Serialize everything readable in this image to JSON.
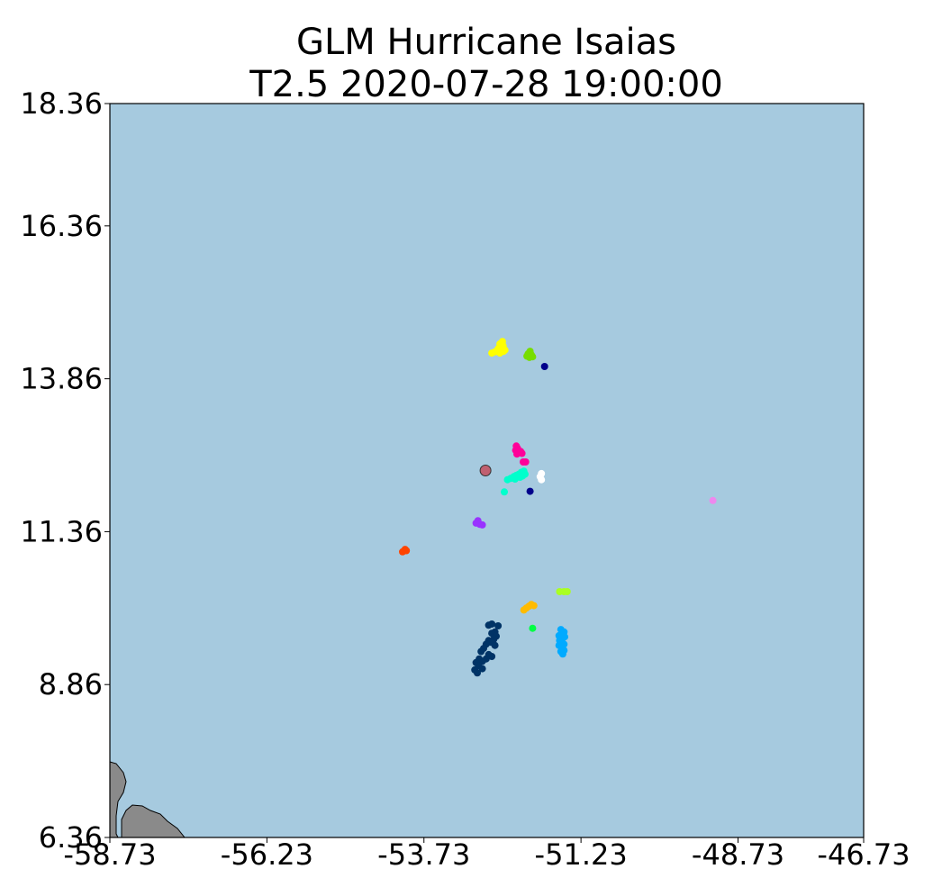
{
  "chart_data": {
    "type": "scatter",
    "title_lines": [
      "GLM Hurricane Isaias",
      "T2.5 2020-07-28 19:00:00"
    ],
    "xlim": [
      -58.73,
      -46.73
    ],
    "ylim": [
      6.36,
      18.36
    ],
    "xticks": [
      -58.73,
      -56.23,
      -53.73,
      -51.23,
      -48.73,
      -46.73
    ],
    "xtick_labels": [
      "-58.73",
      "-56.23",
      "-53.73",
      "-51.23",
      "-48.73",
      "-46.73"
    ],
    "yticks": [
      18.36,
      16.36,
      13.86,
      11.36,
      8.86,
      6.36
    ],
    "ytick_labels": [
      "18.36",
      "16.36",
      "13.86",
      "11.36",
      "8.86",
      "6.36"
    ],
    "grid": false,
    "background": "ocean",
    "colors": {
      "ocean": "#a6cadf",
      "land": "#8a8a8a",
      "storm_center": "#c06070"
    },
    "storm_center": {
      "lon": -52.75,
      "lat": 12.36
    },
    "clusters": [
      {
        "color": "#ffff00",
        "points": [
          [
            -52.48,
            14.47
          ],
          [
            -52.52,
            14.43
          ],
          [
            -52.47,
            14.4
          ],
          [
            -52.55,
            14.35
          ],
          [
            -52.5,
            14.33
          ],
          [
            -52.44,
            14.33
          ],
          [
            -52.6,
            14.3
          ],
          [
            -52.52,
            14.28
          ],
          [
            -52.46,
            14.31
          ],
          [
            -52.65,
            14.28
          ]
        ]
      },
      {
        "color": "#77dd00",
        "points": [
          [
            -52.04,
            14.31
          ],
          [
            -52.07,
            14.27
          ],
          [
            -52.02,
            14.25
          ],
          [
            -52.09,
            14.23
          ],
          [
            -52.05,
            14.21
          ],
          [
            -52.0,
            14.22
          ]
        ]
      },
      {
        "color": "#00008b",
        "points": [
          [
            -51.81,
            14.06
          ],
          [
            -52.04,
            12.02
          ]
        ]
      },
      {
        "color": "#ff0099",
        "points": [
          [
            -52.26,
            12.76
          ],
          [
            -52.24,
            12.72
          ],
          [
            -52.27,
            12.69
          ],
          [
            -52.22,
            12.66
          ],
          [
            -52.19,
            12.67
          ],
          [
            -52.25,
            12.63
          ],
          [
            -52.17,
            12.64
          ],
          [
            -52.15,
            12.5
          ],
          [
            -52.11,
            12.5
          ]
        ]
      },
      {
        "color": "#00ffcc",
        "points": [
          [
            -52.14,
            12.35
          ],
          [
            -52.18,
            12.33
          ],
          [
            -52.22,
            12.3
          ],
          [
            -52.26,
            12.28
          ],
          [
            -52.3,
            12.26
          ],
          [
            -52.12,
            12.3
          ],
          [
            -52.16,
            12.27
          ],
          [
            -52.2,
            12.25
          ],
          [
            -52.35,
            12.23
          ],
          [
            -52.4,
            12.21
          ],
          [
            -52.28,
            12.22
          ],
          [
            -52.45,
            12.01
          ]
        ]
      },
      {
        "color": "#ffffff",
        "points": [
          [
            -51.86,
            12.31
          ],
          [
            -51.88,
            12.26
          ],
          [
            -51.86,
            12.21
          ]
        ]
      },
      {
        "color": "#ee88ee",
        "points": [
          [
            -49.13,
            11.87
          ]
        ]
      },
      {
        "color": "#9933ff",
        "points": [
          [
            -52.87,
            11.54
          ],
          [
            -52.9,
            11.5
          ],
          [
            -52.84,
            11.48
          ],
          [
            -52.8,
            11.47
          ]
        ]
      },
      {
        "color": "#ff4400",
        "points": [
          [
            -54.03,
            11.07
          ],
          [
            -54.07,
            11.03
          ],
          [
            -54.01,
            11.05
          ]
        ]
      },
      {
        "color": "#aaff22",
        "points": [
          [
            -51.57,
            10.38
          ],
          [
            -51.5,
            10.38
          ],
          [
            -51.45,
            10.38
          ]
        ]
      },
      {
        "color": "#ffbb00",
        "points": [
          [
            -52.02,
            10.17
          ],
          [
            -52.06,
            10.14
          ],
          [
            -52.1,
            10.11
          ],
          [
            -51.98,
            10.15
          ],
          [
            -52.14,
            10.08
          ]
        ]
      },
      {
        "color": "#00ff44",
        "points": [
          [
            -52.0,
            9.78
          ]
        ]
      },
      {
        "color": "#00aaff",
        "points": [
          [
            -51.55,
            9.76
          ],
          [
            -51.5,
            9.72
          ],
          [
            -51.58,
            9.66
          ],
          [
            -51.52,
            9.62
          ],
          [
            -51.55,
            9.56
          ],
          [
            -51.5,
            9.52
          ],
          [
            -51.58,
            9.5
          ],
          [
            -51.53,
            9.46
          ],
          [
            -51.5,
            9.42
          ],
          [
            -51.55,
            9.4
          ],
          [
            -51.52,
            9.36
          ],
          [
            -51.57,
            9.58
          ],
          [
            -51.49,
            9.64
          ]
        ]
      },
      {
        "color": "#003366",
        "points": [
          [
            -52.65,
            9.85
          ],
          [
            -52.7,
            9.83
          ],
          [
            -52.55,
            9.82
          ],
          [
            -52.6,
            9.72
          ],
          [
            -52.65,
            9.7
          ],
          [
            -52.58,
            9.65
          ],
          [
            -52.62,
            9.6
          ],
          [
            -52.7,
            9.58
          ],
          [
            -52.66,
            9.55
          ],
          [
            -52.74,
            9.52
          ],
          [
            -52.6,
            9.5
          ],
          [
            -52.78,
            9.45
          ],
          [
            -52.82,
            9.4
          ],
          [
            -52.7,
            9.35
          ],
          [
            -52.65,
            9.32
          ],
          [
            -52.74,
            9.28
          ],
          [
            -52.85,
            9.28
          ],
          [
            -52.9,
            9.22
          ],
          [
            -52.8,
            9.24
          ],
          [
            -52.86,
            9.17
          ],
          [
            -52.92,
            9.1
          ],
          [
            -52.8,
            9.12
          ],
          [
            -52.88,
            9.05
          ]
        ]
      }
    ]
  }
}
